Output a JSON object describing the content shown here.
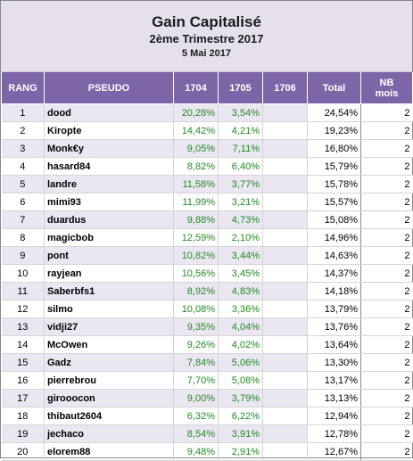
{
  "header": {
    "title": "Gain Capitalisé",
    "subtitle": "2ème Trimestre 2017",
    "date": "5 Mai 2017"
  },
  "columns": {
    "rang": "RANG",
    "pseudo": "PSEUDO",
    "c1704": "1704",
    "c1705": "1705",
    "c1706": "1706",
    "total": "Total",
    "nb_line1": "NB",
    "nb_line2": "mois"
  },
  "colors": {
    "header_bg": "#7e65a8",
    "title_bg": "#e6e0ee",
    "alt_row_bg": "#eae6f2",
    "gain_text": "#1e8c1e"
  },
  "rows": [
    {
      "rang": "1",
      "pseudo": "dood",
      "c1704": "20,28%",
      "c1705": "3,54%",
      "c1706": "",
      "total": "24,54%",
      "nb": "2"
    },
    {
      "rang": "2",
      "pseudo": "Kiropte",
      "c1704": "14,42%",
      "c1705": "4,21%",
      "c1706": "",
      "total": "19,23%",
      "nb": "2"
    },
    {
      "rang": "3",
      "pseudo": "Monk€y",
      "c1704": "9,05%",
      "c1705": "7,11%",
      "c1706": "",
      "total": "16,80%",
      "nb": "2"
    },
    {
      "rang": "4",
      "pseudo": "hasard84",
      "c1704": "8,82%",
      "c1705": "6,40%",
      "c1706": "",
      "total": "15,79%",
      "nb": "2"
    },
    {
      "rang": "5",
      "pseudo": "landre",
      "c1704": "11,58%",
      "c1705": "3,77%",
      "c1706": "",
      "total": "15,78%",
      "nb": "2"
    },
    {
      "rang": "6",
      "pseudo": "mimi93",
      "c1704": "11,99%",
      "c1705": "3,21%",
      "c1706": "",
      "total": "15,57%",
      "nb": "2"
    },
    {
      "rang": "7",
      "pseudo": "duardus",
      "c1704": "9,88%",
      "c1705": "4,73%",
      "c1706": "",
      "total": "15,08%",
      "nb": "2"
    },
    {
      "rang": "8",
      "pseudo": "magicbob",
      "c1704": "12,59%",
      "c1705": "2,10%",
      "c1706": "",
      "total": "14,96%",
      "nb": "2"
    },
    {
      "rang": "9",
      "pseudo": "pont",
      "c1704": "10,82%",
      "c1705": "3,44%",
      "c1706": "",
      "total": "14,63%",
      "nb": "2"
    },
    {
      "rang": "10",
      "pseudo": "rayjean",
      "c1704": "10,56%",
      "c1705": "3,45%",
      "c1706": "",
      "total": "14,37%",
      "nb": "2"
    },
    {
      "rang": "11",
      "pseudo": "Saberbfs1",
      "c1704": "8,92%",
      "c1705": "4,83%",
      "c1706": "",
      "total": "14,18%",
      "nb": "2"
    },
    {
      "rang": "12",
      "pseudo": "silmo",
      "c1704": "10,08%",
      "c1705": "3,36%",
      "c1706": "",
      "total": "13,79%",
      "nb": "2"
    },
    {
      "rang": "13",
      "pseudo": "vidji27",
      "c1704": "9,35%",
      "c1705": "4,04%",
      "c1706": "",
      "total": "13,76%",
      "nb": "2"
    },
    {
      "rang": "14",
      "pseudo": "McOwen",
      "c1704": "9,26%",
      "c1705": "4,02%",
      "c1706": "",
      "total": "13,64%",
      "nb": "2"
    },
    {
      "rang": "15",
      "pseudo": "Gadz",
      "c1704": "7,84%",
      "c1705": "5,06%",
      "c1706": "",
      "total": "13,30%",
      "nb": "2"
    },
    {
      "rang": "16",
      "pseudo": "pierrebrou",
      "c1704": "7,70%",
      "c1705": "5,08%",
      "c1706": "",
      "total": "13,17%",
      "nb": "2"
    },
    {
      "rang": "17",
      "pseudo": "girooocon",
      "c1704": "9,00%",
      "c1705": "3,79%",
      "c1706": "",
      "total": "13,13%",
      "nb": "2"
    },
    {
      "rang": "18",
      "pseudo": "thibaut2604",
      "c1704": "6,32%",
      "c1705": "6,22%",
      "c1706": "",
      "total": "12,94%",
      "nb": "2"
    },
    {
      "rang": "19",
      "pseudo": "jechaco",
      "c1704": "8,54%",
      "c1705": "3,91%",
      "c1706": "",
      "total": "12,78%",
      "nb": "2"
    },
    {
      "rang": "20",
      "pseudo": "elorem88",
      "c1704": "9,48%",
      "c1705": "2,91%",
      "c1706": "",
      "total": "12,67%",
      "nb": "2"
    }
  ]
}
